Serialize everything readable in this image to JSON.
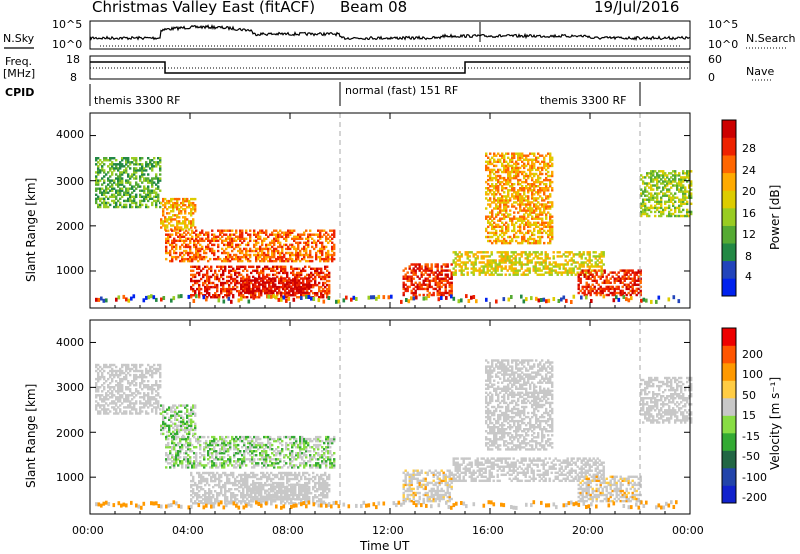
{
  "header": {
    "title": "Christmas Valley East (fitACF)",
    "beam": "Beam 08",
    "date": "19/Jul/2016"
  },
  "panels": {
    "nsky": {
      "label": "N.Sky",
      "ticks": [
        "10^5",
        "10^0"
      ],
      "right_ticks": [
        "10^5",
        "10^0"
      ],
      "right_label": "N.Search",
      "right_style": "dotted"
    },
    "freq": {
      "label": "Freq.",
      "unit": "[MHz]",
      "ticks": [
        "18",
        "8"
      ],
      "right_ticks": [
        "60",
        "0"
      ],
      "right_label": "Nave",
      "right_style": "dotted"
    },
    "cpid": {
      "label": "CPID",
      "segments": [
        {
          "text": "themis 3300 RF",
          "start_h": 0,
          "end_h": 10
        },
        {
          "text": "normal (fast) 151 RF",
          "start_h": 10,
          "end_h": 22
        },
        {
          "text": "themis 3300 RF",
          "start_h": 22,
          "end_h": 24
        }
      ]
    }
  },
  "colors": {
    "power": [
      "#0022ee",
      "#2244bb",
      "#228844",
      "#55aa33",
      "#99cc22",
      "#ddcc00",
      "#ffaa00",
      "#ff6600",
      "#ee2200",
      "#cc0000"
    ],
    "velocity": [
      "#ee0000",
      "#ff5500",
      "#ff9900",
      "#ffcc44",
      "#c8c8c8",
      "#88dd44",
      "#33aa33",
      "#226644",
      "#2244aa",
      "#1122cc"
    ],
    "gray": "#c8c8c8"
  },
  "chart_data": [
    {
      "type": "heatmap",
      "name": "power",
      "ylabel": "Slant Range [km]",
      "xlabel": "Time UT",
      "x_ticks": [
        "00:00",
        "04:00",
        "08:00",
        "12:00",
        "16:00",
        "20:00",
        "00:00"
      ],
      "y_ticks": [
        "1000",
        "2000",
        "3000",
        "4000"
      ],
      "x_range_h": [
        0,
        24
      ],
      "y_range_km": [
        180,
        4500
      ],
      "colorbar": {
        "label": "Power [dB]",
        "ticks": [
          "4",
          "8",
          "12",
          "16",
          "20",
          "24",
          "28"
        ]
      },
      "echo_regions": [
        {
          "t0": 0.2,
          "t1": 2.8,
          "r0": 2400,
          "r1": 3500,
          "level": 3
        },
        {
          "t0": 2.8,
          "t1": 4.2,
          "r0": 1900,
          "r1": 2600,
          "level": 6
        },
        {
          "t0": 3.0,
          "t1": 9.8,
          "r0": 1200,
          "r1": 1900,
          "level": 7
        },
        {
          "t0": 4.0,
          "t1": 9.6,
          "r0": 400,
          "r1": 1100,
          "level": 8
        },
        {
          "t0": 6.0,
          "t1": 8.8,
          "r0": 500,
          "r1": 850,
          "level": 9
        },
        {
          "t0": 12.5,
          "t1": 14.5,
          "r0": 450,
          "r1": 1150,
          "level": 8
        },
        {
          "t0": 14.5,
          "t1": 20.5,
          "r0": 900,
          "r1": 1400,
          "level": 5
        },
        {
          "t0": 15.8,
          "t1": 18.5,
          "r0": 1600,
          "r1": 3600,
          "level": 6
        },
        {
          "t0": 19.5,
          "t1": 22.0,
          "r0": 450,
          "r1": 1000,
          "level": 8
        },
        {
          "t0": 22.0,
          "t1": 24.0,
          "r0": 2200,
          "r1": 3200,
          "level": 4
        }
      ]
    },
    {
      "type": "heatmap",
      "name": "velocity",
      "ylabel": "Slant Range [km]",
      "xlabel": "Time UT",
      "x_ticks": [
        "00:00",
        "04:00",
        "08:00",
        "12:00",
        "16:00",
        "20:00",
        "00:00"
      ],
      "y_ticks": [
        "1000",
        "2000",
        "3000",
        "4000"
      ],
      "x_range_h": [
        0,
        24
      ],
      "y_range_km": [
        180,
        4500
      ],
      "colorbar": {
        "label": "Velocity [m s⁻¹]",
        "ticks": [
          "200",
          "100",
          "50",
          "15",
          "-15",
          "-50",
          "-100",
          "-200"
        ]
      }
    }
  ],
  "axis": {
    "xlabel": "Time UT"
  }
}
